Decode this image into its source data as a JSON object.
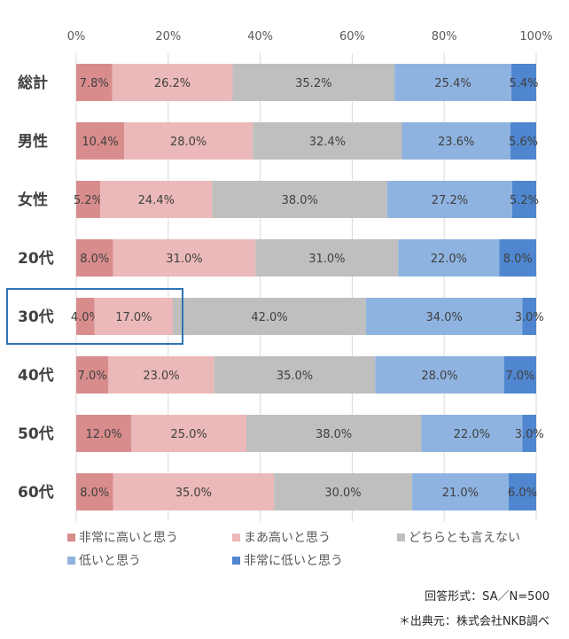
{
  "chart_data": {
    "type": "bar",
    "orientation": "horizontal",
    "stacked": true,
    "categories": [
      "総計",
      "男性",
      "女性",
      "20代",
      "30代",
      "40代",
      "50代",
      "60代"
    ],
    "series": [
      {
        "name": "非常に高いと思う",
        "color": "#d98c8c",
        "values": [
          7.8,
          10.4,
          5.2,
          8.0,
          4.0,
          7.0,
          12.0,
          8.0
        ]
      },
      {
        "name": "まあ高いと思う",
        "color": "#ebb9b9",
        "values": [
          26.2,
          28.0,
          24.4,
          31.0,
          17.0,
          23.0,
          25.0,
          35.0
        ]
      },
      {
        "name": "どちらとも言えない",
        "color": "#bfbfbf",
        "values": [
          35.2,
          32.4,
          38.0,
          31.0,
          42.0,
          35.0,
          38.0,
          30.0
        ]
      },
      {
        "name": "低いと思う",
        "color": "#8fb3e0",
        "values": [
          25.4,
          23.6,
          27.2,
          22.0,
          34.0,
          28.0,
          22.0,
          21.0
        ]
      },
      {
        "name": "非常に低いと思う",
        "color": "#4f86cf",
        "values": [
          5.4,
          5.6,
          5.2,
          8.0,
          3.0,
          7.0,
          3.0,
          6.0
        ]
      }
    ],
    "xlim": [
      0,
      100
    ],
    "xticks": [
      "0%",
      "20%",
      "40%",
      "60%",
      "80%",
      "100%"
    ],
    "grid": true,
    "legend_position": "bottom",
    "highlighted_category": "30代",
    "highlight_color": "#2e75b6"
  },
  "notes": {
    "format": "回答形式：SA／N=500",
    "source": "＊出典元：株式会社NKB調べ"
  }
}
